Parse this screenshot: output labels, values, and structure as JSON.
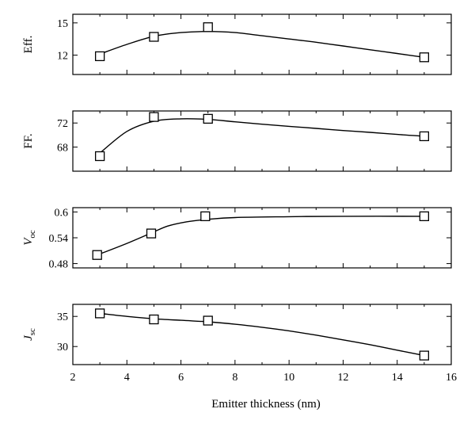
{
  "chart_data": [
    {
      "type": "line",
      "ylabel": "Eff.",
      "x": [
        3,
        5,
        7,
        15
      ],
      "values": [
        11.9,
        13.7,
        14.6,
        11.8
      ],
      "ylim": [
        10.2,
        15.8
      ],
      "yticks": [
        12,
        15
      ],
      "curve_x": [
        3,
        4,
        5,
        6,
        7,
        8,
        9,
        10,
        11,
        12,
        13,
        14,
        15
      ],
      "curve_y": [
        12.1,
        13.0,
        13.75,
        14.1,
        14.2,
        14.1,
        13.8,
        13.5,
        13.2,
        12.85,
        12.5,
        12.15,
        11.8
      ]
    },
    {
      "type": "line",
      "ylabel": "FF.",
      "x": [
        3,
        5,
        7,
        15
      ],
      "values": [
        66.5,
        73.0,
        72.7,
        69.8
      ],
      "ylim": [
        64.0,
        74.0
      ],
      "yticks": [
        68,
        72
      ],
      "curve_x": [
        3,
        4,
        5,
        6,
        7,
        8,
        9,
        10,
        11,
        12,
        13,
        14,
        15
      ],
      "curve_y": [
        67.0,
        70.6,
        72.3,
        72.7,
        72.6,
        72.2,
        71.8,
        71.45,
        71.1,
        70.75,
        70.45,
        70.1,
        69.8
      ]
    },
    {
      "type": "line",
      "ylabel": "Voc",
      "ylabel_main": "V",
      "ylabel_sub": "oc",
      "x": [
        2.9,
        4.9,
        6.9,
        15
      ],
      "values": [
        0.5,
        0.55,
        0.59,
        0.59
      ],
      "ylim": [
        0.47,
        0.61
      ],
      "yticks": [
        0.48,
        0.54,
        0.6
      ],
      "ytick_labels": [
        "0.48",
        "0.54",
        "0.6"
      ],
      "curve_x": [
        2.9,
        4,
        4.9,
        5.5,
        6.2,
        7,
        8,
        10,
        12,
        15
      ],
      "curve_y": [
        0.5,
        0.527,
        0.551,
        0.567,
        0.577,
        0.583,
        0.587,
        0.589,
        0.59,
        0.59
      ]
    },
    {
      "type": "line",
      "ylabel": "Jsc",
      "ylabel_main": "J",
      "ylabel_sub": "sc",
      "x": [
        3,
        5,
        7,
        15
      ],
      "values": [
        35.5,
        34.5,
        34.3,
        28.5
      ],
      "ylim": [
        27.0,
        37.0
      ],
      "yticks": [
        30,
        35
      ],
      "curve_x": [
        3,
        4,
        5,
        6,
        7,
        8,
        9,
        10,
        11,
        12,
        13,
        14,
        15
      ],
      "curve_y": [
        35.5,
        35.0,
        34.6,
        34.35,
        34.1,
        33.7,
        33.2,
        32.6,
        31.9,
        31.1,
        30.3,
        29.4,
        28.5
      ]
    }
  ],
  "x_axis": {
    "label": "Emitter thickness (nm)",
    "xlim": [
      2,
      16
    ],
    "ticks": [
      2,
      4,
      6,
      8,
      10,
      12,
      14,
      16
    ]
  }
}
